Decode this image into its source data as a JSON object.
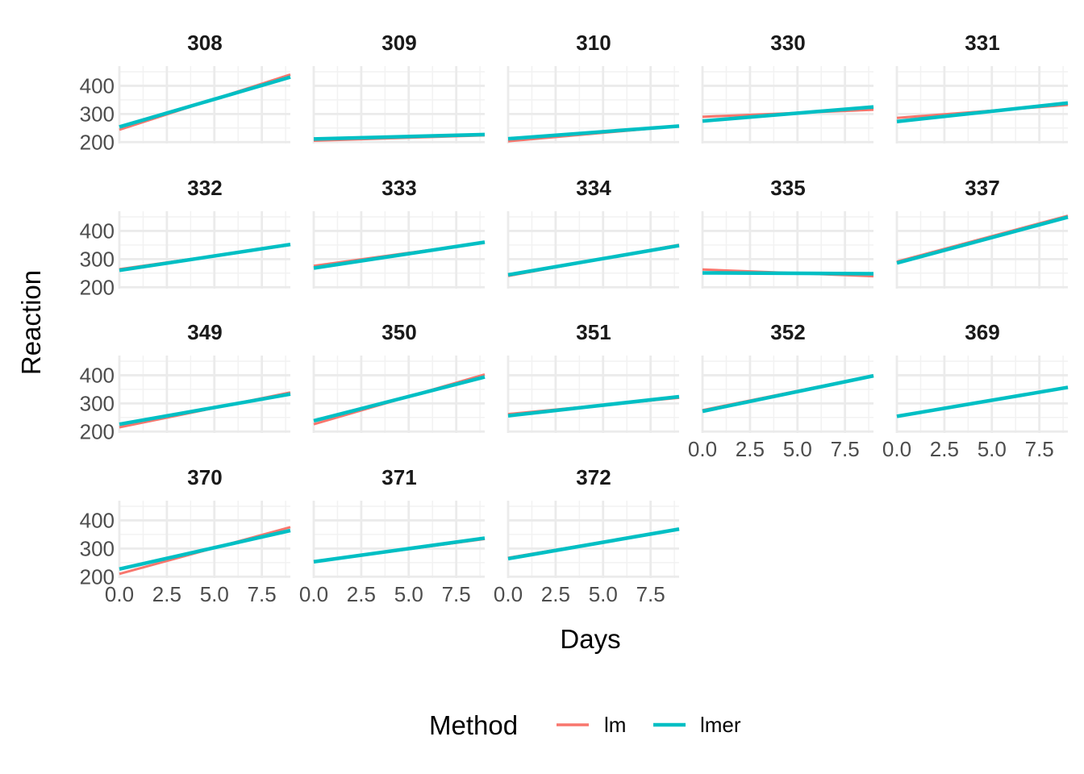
{
  "chart_data": {
    "type": "line",
    "xlabel": "Days",
    "ylabel": "Reaction",
    "xlim": [
      0,
      9
    ],
    "ylim": [
      195,
      470
    ],
    "x_ticks": [
      "0.0",
      "2.5",
      "5.0",
      "7.5"
    ],
    "x_tick_values": [
      0,
      2.5,
      5,
      7.5
    ],
    "y_ticks": [
      "200",
      "300",
      "400"
    ],
    "y_tick_values": [
      200,
      300,
      400
    ],
    "grid": true,
    "legend": {
      "title": "Method",
      "position": "bottom",
      "entries": [
        {
          "name": "lm",
          "color": "#F8766D"
        },
        {
          "name": "lmer",
          "color": "#00BFC4"
        }
      ]
    },
    "facets": [
      {
        "label": "308",
        "lm": [
          [
            0,
            244
          ],
          [
            9,
            440
          ]
        ],
        "lmer": [
          [
            0,
            254
          ],
          [
            9,
            431
          ]
        ]
      },
      {
        "label": "309",
        "lm": [
          [
            0,
            205
          ],
          [
            9,
            224
          ]
        ],
        "lmer": [
          [
            0,
            211
          ],
          [
            9,
            227
          ]
        ]
      },
      {
        "label": "310",
        "lm": [
          [
            0,
            203
          ],
          [
            9,
            257
          ]
        ],
        "lmer": [
          [
            0,
            212
          ],
          [
            9,
            257
          ]
        ]
      },
      {
        "label": "330",
        "lm": [
          [
            0,
            290
          ],
          [
            9,
            315
          ]
        ],
        "lmer": [
          [
            0,
            275
          ],
          [
            9,
            325
          ]
        ]
      },
      {
        "label": "331",
        "lm": [
          [
            0,
            286
          ],
          [
            9,
            332
          ]
        ],
        "lmer": [
          [
            0,
            273
          ],
          [
            9,
            339
          ]
        ]
      },
      {
        "label": "332",
        "lm": [
          [
            0,
            264
          ],
          [
            9,
            350
          ]
        ],
        "lmer": [
          [
            0,
            260
          ],
          [
            9,
            352
          ]
        ]
      },
      {
        "label": "333",
        "lm": [
          [
            0,
            276
          ],
          [
            9,
            359
          ]
        ],
        "lmer": [
          [
            0,
            268
          ],
          [
            9,
            360
          ]
        ]
      },
      {
        "label": "334",
        "lm": [
          [
            0,
            240
          ],
          [
            9,
            351
          ]
        ],
        "lmer": [
          [
            0,
            244
          ],
          [
            9,
            348
          ]
        ]
      },
      {
        "label": "335",
        "lm": [
          [
            0,
            263
          ],
          [
            9,
            239
          ]
        ],
        "lmer": [
          [
            0,
            251
          ],
          [
            9,
            248
          ]
        ]
      },
      {
        "label": "337",
        "lm": [
          [
            0,
            291
          ],
          [
            9,
            454
          ]
        ],
        "lmer": [
          [
            0,
            286
          ],
          [
            9,
            449
          ]
        ]
      },
      {
        "label": "349",
        "lm": [
          [
            0,
            215
          ],
          [
            9,
            339
          ]
        ],
        "lmer": [
          [
            0,
            226
          ],
          [
            9,
            333
          ]
        ]
      },
      {
        "label": "350",
        "lm": [
          [
            0,
            226
          ],
          [
            9,
            403
          ]
        ],
        "lmer": [
          [
            0,
            238
          ],
          [
            9,
            394
          ]
        ]
      },
      {
        "label": "351",
        "lm": [
          [
            0,
            262
          ],
          [
            9,
            320
          ]
        ],
        "lmer": [
          [
            0,
            256
          ],
          [
            9,
            324
          ]
        ]
      },
      {
        "label": "352",
        "lm": [
          [
            0,
            276
          ],
          [
            9,
            399
          ]
        ],
        "lmer": [
          [
            0,
            272
          ],
          [
            9,
            398
          ]
        ]
      },
      {
        "label": "369",
        "lm": [
          [
            0,
            255
          ],
          [
            9,
            358
          ]
        ],
        "lmer": [
          [
            0,
            254
          ],
          [
            9,
            357
          ]
        ]
      },
      {
        "label": "370",
        "lm": [
          [
            0,
            210
          ],
          [
            9,
            376
          ]
        ],
        "lmer": [
          [
            0,
            227
          ],
          [
            9,
            364
          ]
        ]
      },
      {
        "label": "371",
        "lm": [
          [
            0,
            253
          ],
          [
            9,
            334
          ]
        ],
        "lmer": [
          [
            0,
            253
          ],
          [
            9,
            337
          ]
        ]
      },
      {
        "label": "372",
        "lm": [
          [
            0,
            267
          ],
          [
            9,
            369
          ]
        ],
        "lmer": [
          [
            0,
            264
          ],
          [
            9,
            369
          ]
        ]
      }
    ]
  }
}
